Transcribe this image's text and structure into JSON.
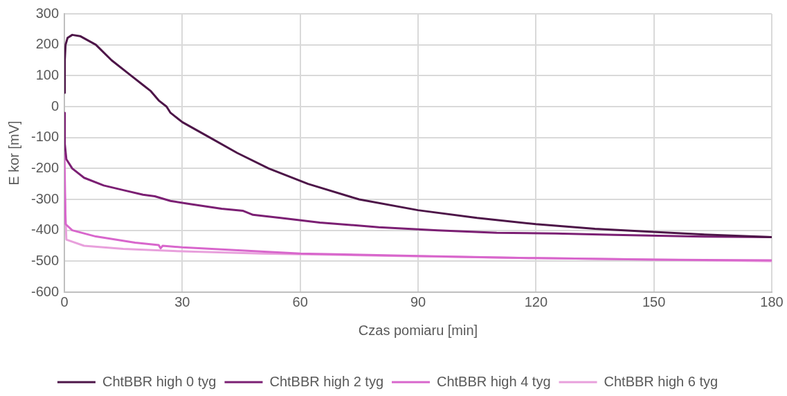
{
  "chart_data": {
    "type": "line",
    "xlabel": "Czas pomiaru [min]",
    "ylabel": "E kor [mV]",
    "xlim": [
      0,
      180
    ],
    "xticks": [
      0,
      30,
      60,
      90,
      120,
      150,
      180
    ],
    "ylim": [
      -600,
      300
    ],
    "yticks": [
      -600,
      -500,
      -400,
      -300,
      -200,
      -100,
      0,
      100,
      200,
      300
    ],
    "grid": true,
    "legend": "bottom",
    "marker": "none",
    "line_style": "solid",
    "series": [
      {
        "name": "ChtBBR high 0 tyg",
        "color": "#4d1548",
        "x": [
          0,
          0.1,
          0.3,
          0.8,
          2,
          4,
          8,
          12,
          17,
          20,
          22,
          24,
          26,
          27,
          30,
          37,
          44,
          52,
          62,
          75,
          90,
          105,
          120,
          135,
          150,
          165,
          180
        ],
        "values": [
          45,
          150,
          200,
          222,
          232,
          228,
          200,
          150,
          100,
          70,
          50,
          20,
          0,
          -20,
          -50,
          -100,
          -150,
          -200,
          -250,
          -300,
          -335,
          -360,
          -380,
          -395,
          -405,
          -415,
          -422
        ]
      },
      {
        "name": "ChtBBR high 2 tyg",
        "color": "#7b1f73",
        "x": [
          0,
          0.1,
          0.5,
          2,
          5,
          10,
          15,
          20,
          23,
          27,
          32,
          40,
          45.5,
          48,
          55,
          65,
          80,
          95,
          110,
          125,
          140,
          160,
          180
        ],
        "values": [
          -20,
          -120,
          -170,
          -200,
          -230,
          -255,
          -270,
          -285,
          -290,
          -305,
          -315,
          -330,
          -337,
          -350,
          -360,
          -375,
          -390,
          -400,
          -408,
          -410,
          -415,
          -420,
          -422
        ]
      },
      {
        "name": "ChtBBR high 4 tyg",
        "color": "#d866cc",
        "x": [
          0,
          0.3,
          2,
          8,
          18,
          24,
          24.5,
          25,
          30,
          45,
          60,
          90,
          120,
          150,
          180
        ],
        "values": [
          -150,
          -380,
          -400,
          -420,
          -440,
          -448,
          -458,
          -450,
          -455,
          -465,
          -475,
          -483,
          -490,
          -495,
          -497
        ]
      },
      {
        "name": "ChtBBR high 6 tyg",
        "color": "#e8a0dc",
        "x": [
          0,
          0.5,
          5,
          15,
          30,
          50,
          80,
          120,
          150,
          180
        ],
        "values": [
          -250,
          -430,
          -450,
          -460,
          -468,
          -475,
          -482,
          -490,
          -495,
          -500
        ]
      }
    ]
  }
}
